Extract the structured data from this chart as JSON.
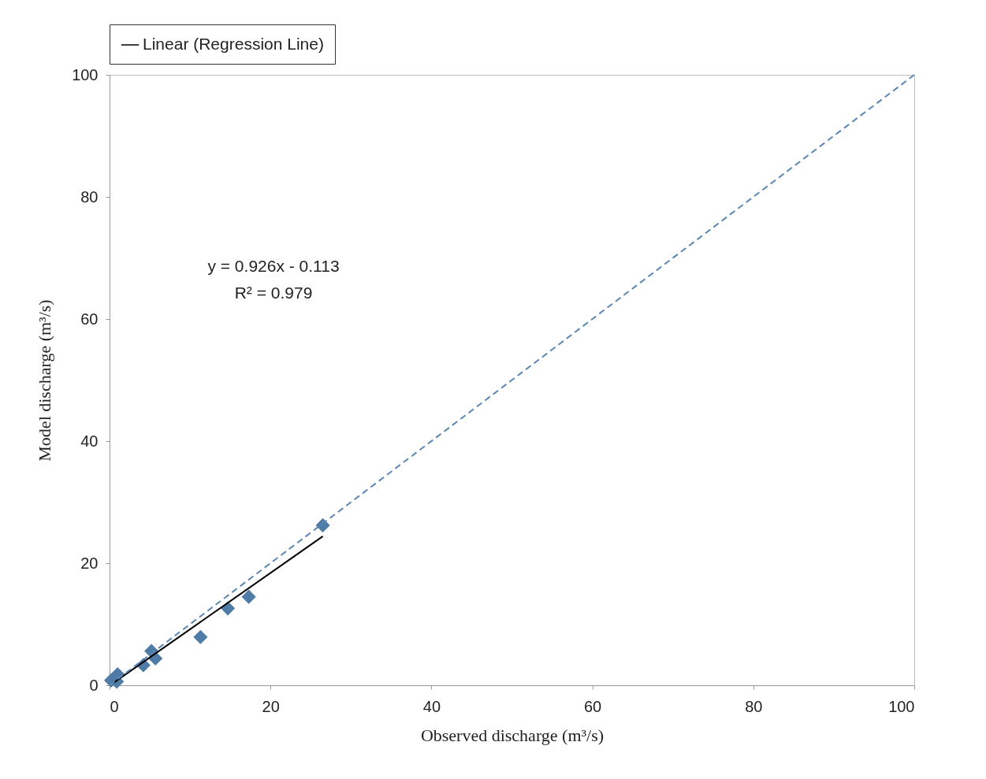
{
  "chart_data": {
    "type": "scatter",
    "xlabel": "Observed discharge (m³/s)",
    "ylabel": "Model discharge (m³/s)",
    "xlim": [
      0,
      100
    ],
    "ylim": [
      0,
      100
    ],
    "xticks": [
      0,
      20,
      40,
      60,
      80,
      100
    ],
    "yticks": [
      0,
      20,
      40,
      60,
      80,
      100
    ],
    "grid": false,
    "legend": "top",
    "annotations": [
      "y = 0.926x - 0.113",
      "R² = 0.979"
    ],
    "series": [
      {
        "marker": "diamond",
        "color": "#4f7ba7",
        "x": [
          0.2,
          0.9,
          1.0,
          4.2,
          5.2,
          5.7,
          11.3,
          14.7,
          17.3,
          26.5
        ],
        "values": [
          0.8,
          0.6,
          1.8,
          3.3,
          5.6,
          4.4,
          7.9,
          12.6,
          14.5,
          26.2
        ]
      },
      {
        "type": "line",
        "name": "Linear (Regression Line)",
        "color": "#000000",
        "x": [
          0.5,
          26.5
        ],
        "values": [
          0.4,
          24.4
        ]
      },
      {
        "type": "line",
        "color": "#5b86b3",
        "line_style": "dashed",
        "x": [
          0,
          100
        ],
        "values": [
          0,
          100
        ]
      }
    ]
  }
}
